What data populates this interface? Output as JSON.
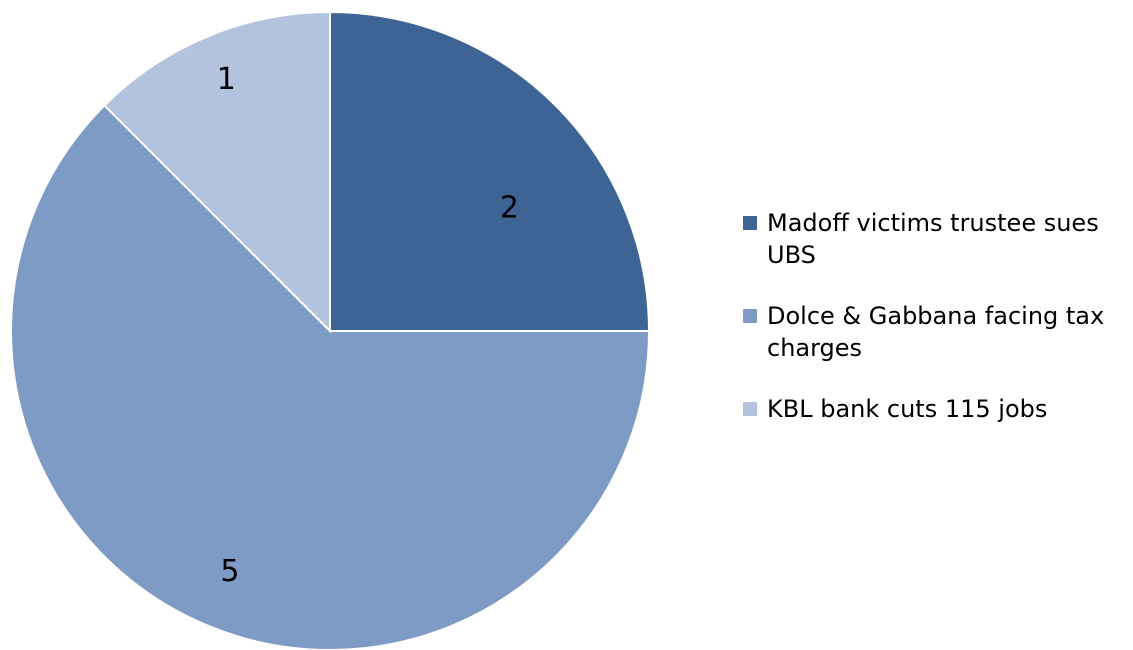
{
  "chart_data": {
    "type": "pie",
    "categories": [
      "Madoff victims trustee sues UBS",
      "Dolce & Gabbana facing tax charges",
      "KBL bank cuts 115 jobs"
    ],
    "values": [
      2,
      5,
      1
    ],
    "data_labels": [
      "2",
      "5",
      "1"
    ],
    "colors": [
      "#3d6495",
      "#7e9bc6",
      "#b4c3dd"
    ],
    "start_angle": "12 o'clock",
    "direction": "clockwise",
    "legend": {
      "position": "right",
      "entries": [
        {
          "lines": [
            "Madoff victims trustee sues",
            "UBS"
          ]
        },
        {
          "lines": [
            "Dolce & Gabbana facing tax",
            "charges"
          ]
        },
        {
          "lines": [
            "KBL bank cuts 115 jobs"
          ]
        }
      ]
    }
  }
}
